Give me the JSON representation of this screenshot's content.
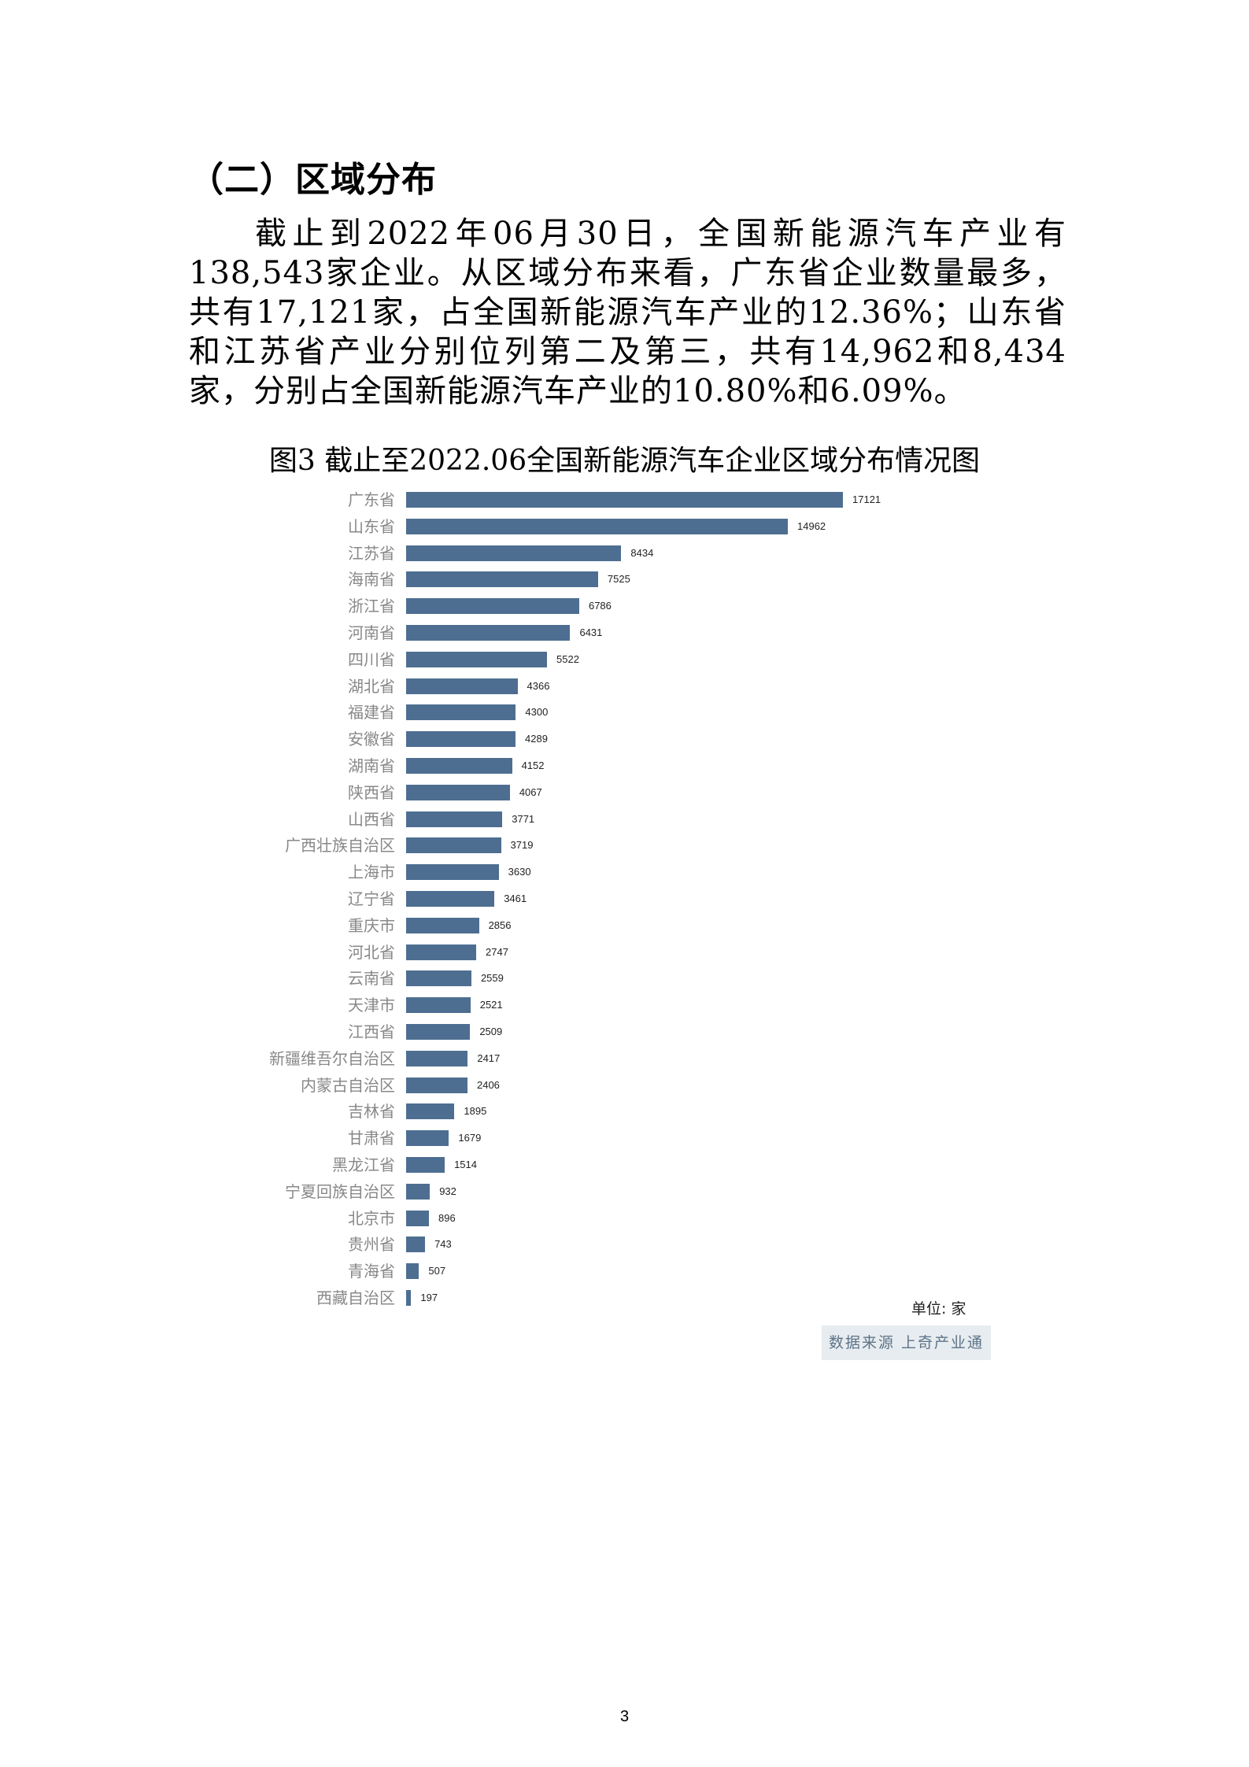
{
  "section": {
    "title": "（二）区域分布"
  },
  "paragraph": "截止到2022年06月30日，全国新能源汽车产业有138,543家企业。从区域分布来看，广东省企业数量最多，共有17,121家，占全国新能源汽车产业的12.36%；山东省和江苏省产业分别位列第二及第三，共有14,962和8,434家，分别占全国新能源汽车产业的10.80%和6.09%。",
  "chart_data": {
    "type": "bar",
    "orientation": "horizontal",
    "title": "图3 截止至2022.06全国新能源汽车企业区域分布情况图",
    "xlabel": "",
    "ylabel": "",
    "unit": "单位: 家",
    "source": "数据来源 上奇产业通",
    "bar_color": "#4d6e91",
    "grid": false,
    "legend": "none",
    "categories": [
      "广东省",
      "山东省",
      "江苏省",
      "海南省",
      "浙江省",
      "河南省",
      "四川省",
      "湖北省",
      "福建省",
      "安徽省",
      "湖南省",
      "陕西省",
      "山西省",
      "广西壮族自治区",
      "上海市",
      "辽宁省",
      "重庆市",
      "河北省",
      "云南省",
      "天津市",
      "江西省",
      "新疆维吾尔自治区",
      "内蒙古自治区",
      "吉林省",
      "甘肃省",
      "黑龙江省",
      "宁夏回族自治区",
      "北京市",
      "贵州省",
      "青海省",
      "西藏自治区"
    ],
    "values": [
      17121,
      14962,
      8434,
      7525,
      6786,
      6431,
      5522,
      4366,
      4300,
      4289,
      4152,
      4067,
      3771,
      3719,
      3630,
      3461,
      2856,
      2747,
      2559,
      2521,
      2509,
      2417,
      2406,
      1895,
      1679,
      1514,
      932,
      896,
      743,
      507,
      197
    ]
  },
  "page_number": "3"
}
